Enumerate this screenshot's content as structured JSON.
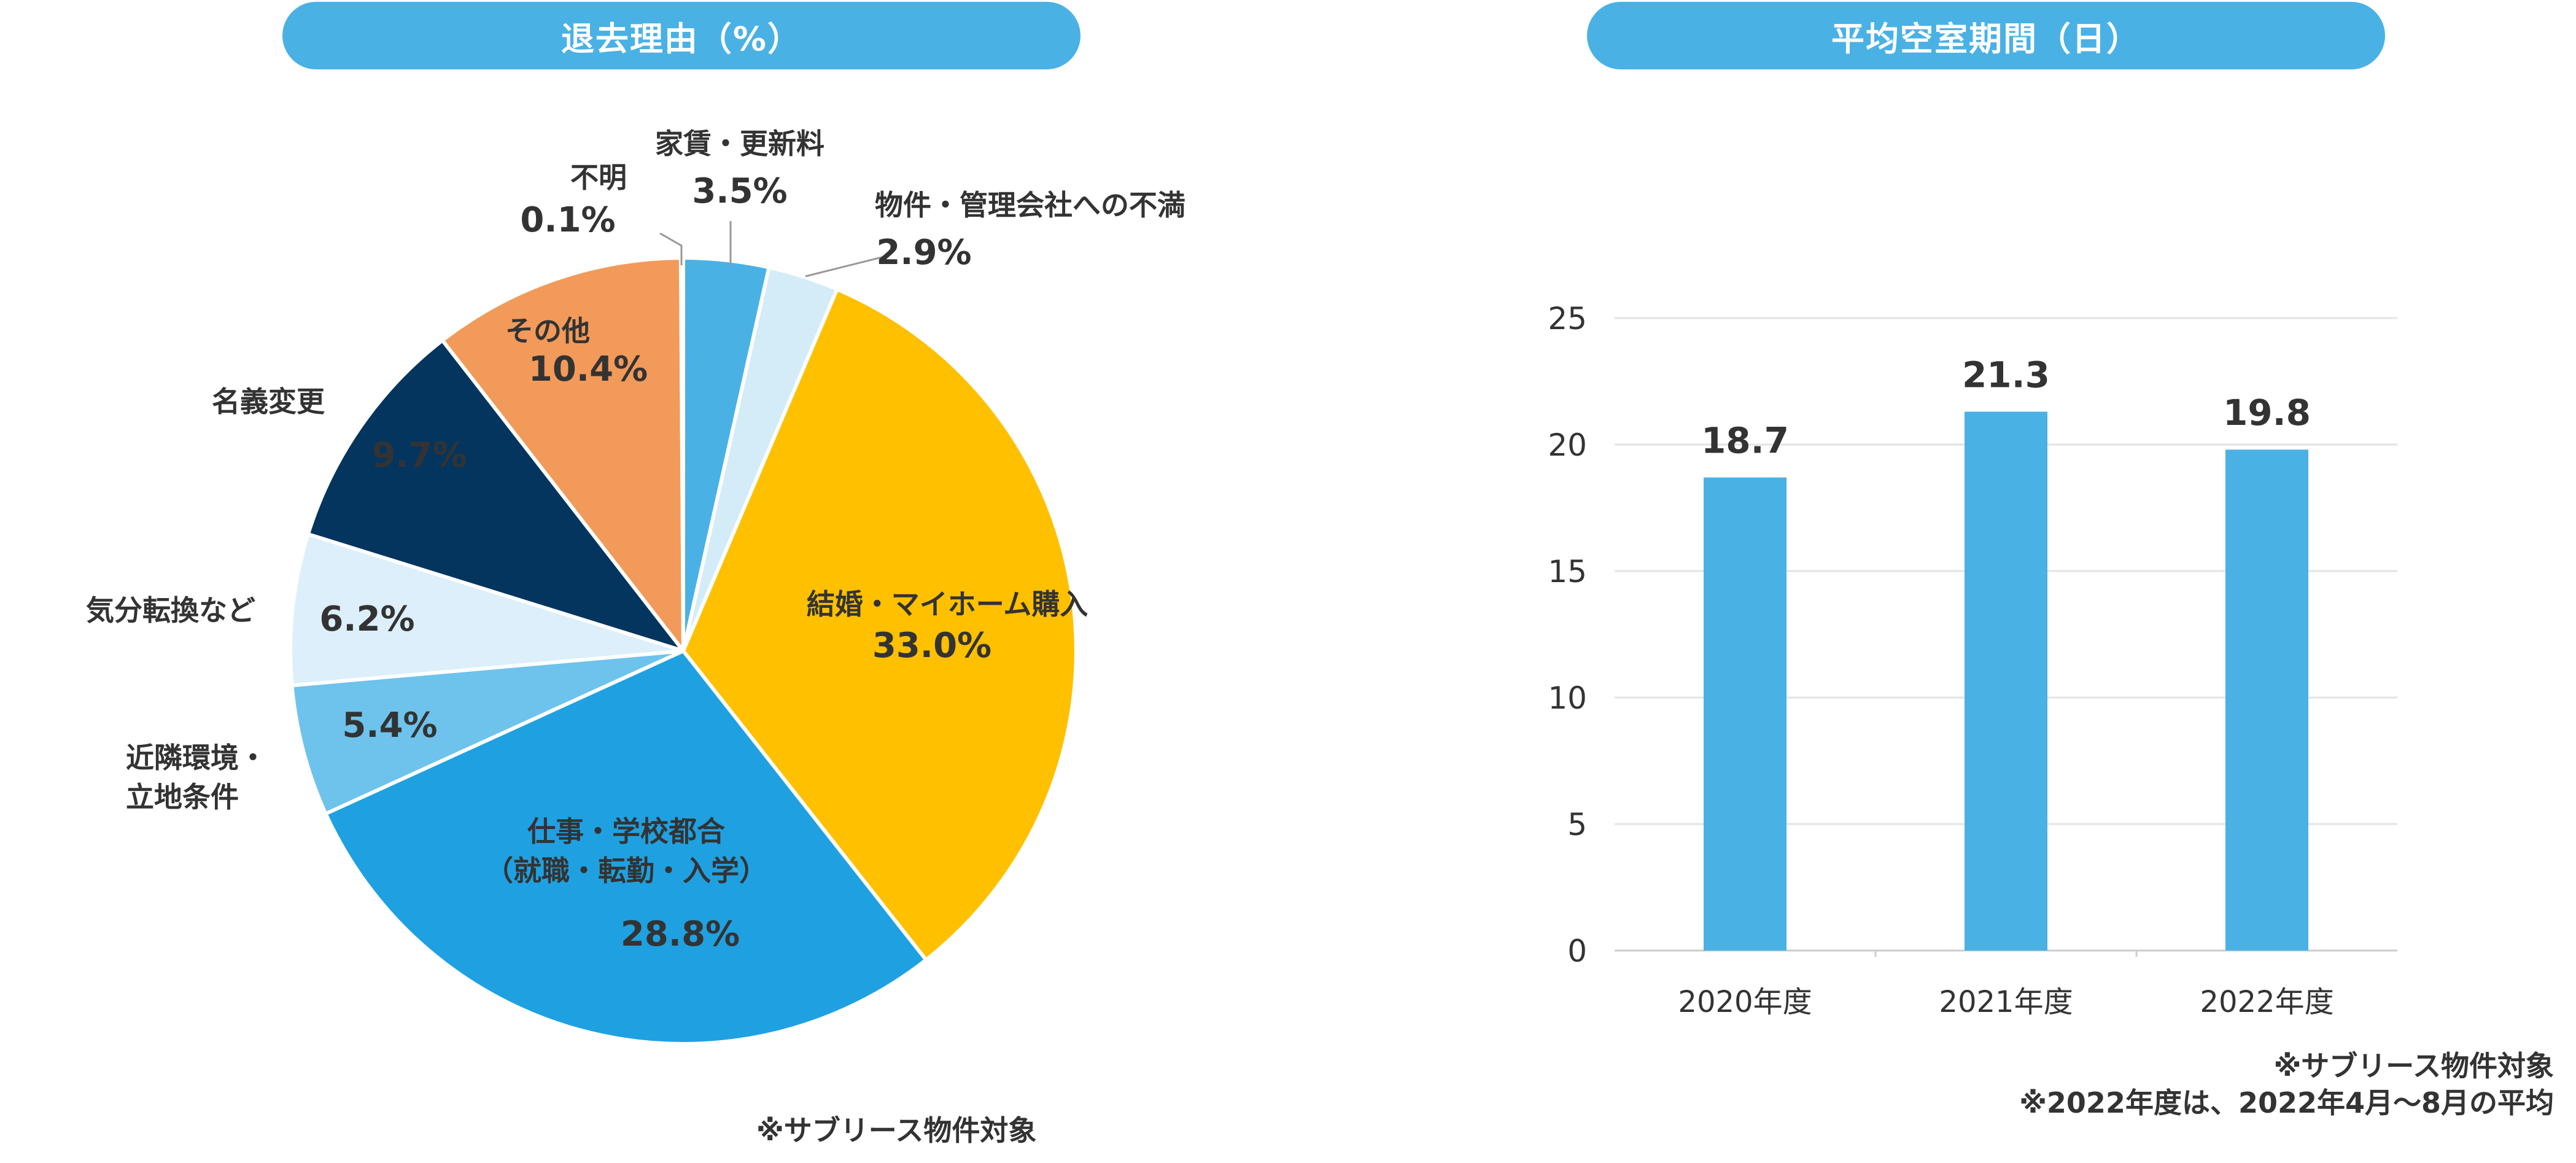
{
  "pie": {
    "title": "退去理由（%）",
    "note": "※サブリース物件対象"
  },
  "bar": {
    "title": "平均空室期間（日）",
    "notes": [
      "※サブリース物件対象",
      "※2022年度は、2022年4月～8月の平均"
    ]
  },
  "chart_data": [
    {
      "type": "pie",
      "title": "退去理由（%）",
      "slices": [
        {
          "label": "家賃・更新料",
          "value": 3.5,
          "value_label": "3.5%",
          "color": "#4AB1E5"
        },
        {
          "label": "物件・管理会社への不満",
          "value": 2.9,
          "value_label": "2.9%",
          "color": "#D4ECF8"
        },
        {
          "label": "結婚・マイホーム購入",
          "value": 33.0,
          "value_label": "33.0%",
          "color": "#FFC000"
        },
        {
          "label": "仕事・学校都合\n（就職・転勤・入学）",
          "value": 28.8,
          "value_label": "28.8%",
          "color": "#1FA1E1"
        },
        {
          "label": "近隣環境・\n立地条件",
          "value": 5.4,
          "value_label": "5.4%",
          "color": "#6DC3EC"
        },
        {
          "label": "気分転換など",
          "value": 6.2,
          "value_label": "6.2%",
          "color": "#DCEFFA"
        },
        {
          "label": "名義変更",
          "value": 9.7,
          "value_label": "9.7%",
          "color": "#03355F"
        },
        {
          "label": "その他",
          "value": 10.4,
          "value_label": "10.4%",
          "color": "#F29A5A"
        },
        {
          "label": "不明",
          "value": 0.1,
          "value_label": "0.1%",
          "color": "#4AB1E5"
        }
      ]
    },
    {
      "type": "bar",
      "title": "平均空室期間（日）",
      "categories": [
        "2020年度",
        "2021年度",
        "2022年度"
      ],
      "values": [
        18.7,
        21.3,
        19.8
      ],
      "value_labels": [
        "18.7",
        "21.3",
        "19.8"
      ],
      "ylim": [
        0,
        25
      ],
      "yticks": [
        "0",
        "5",
        "10",
        "15",
        "20",
        "25"
      ],
      "grid": true,
      "color": "#4AB1E5"
    }
  ]
}
